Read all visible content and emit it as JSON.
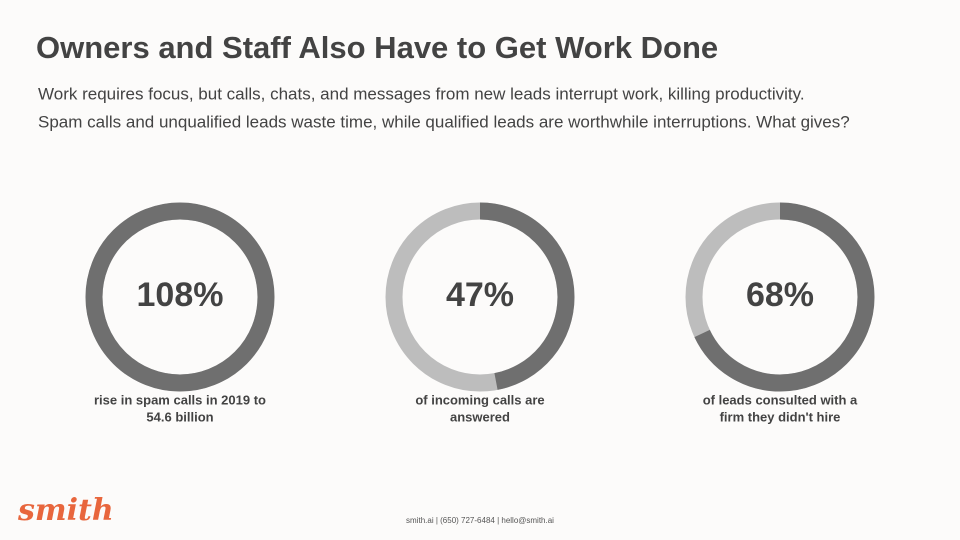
{
  "header": {
    "title": "Owners and Staff Also Have to Get Work Done",
    "subtitle_lines": [
      "Work requires focus, but calls, chats, and messages from new leads interrupt work, killing productivity.",
      "Spam calls and unqualified leads waste time, while qualified leads are worthwhile interruptions. What gives?"
    ]
  },
  "stats": [
    {
      "value": 108,
      "label": "108%",
      "caption_lines": [
        "rise in spam calls in 2019 to",
        "54.6 billion"
      ]
    },
    {
      "value": 47,
      "label": "47%",
      "caption_lines": [
        "of incoming calls are",
        "answered"
      ]
    },
    {
      "value": 68,
      "label": "68%",
      "caption_lines": [
        "of leads consulted with a",
        "firm they didn't hire"
      ]
    }
  ],
  "footer": {
    "logo": "smith",
    "contact": "smith.ai | (650) 727-6484 | hello@smith.ai"
  }
}
